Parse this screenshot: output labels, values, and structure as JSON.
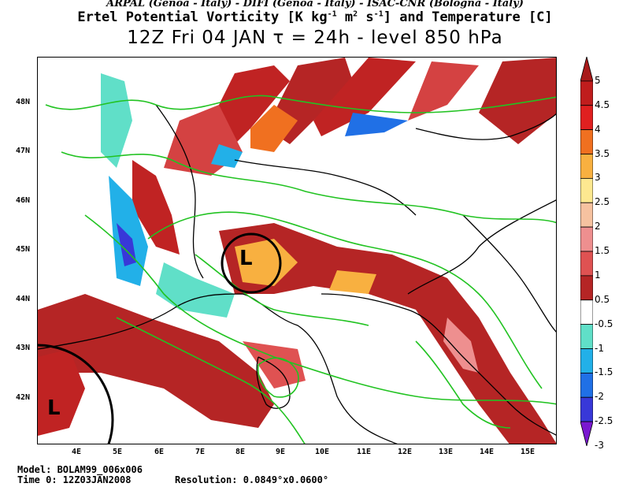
{
  "header": {
    "sources": "ARPAL (Genoa - Italy)  -  DIFI (Genoa - Italy)  -  ISAC-CNR (Bologna - Italy)",
    "title": "Ertel Potential Vorticity [K kg-1 m2 s-1] and Temperature [C]",
    "subtitle": "12Z Fri 04 JAN  τ = 24h  -  level 850 hPa"
  },
  "axes": {
    "lat_labels": [
      "48N",
      "47N",
      "46N",
      "45N",
      "44N",
      "43N",
      "42N"
    ],
    "lon_labels": [
      "4E",
      "5E",
      "6E",
      "7E",
      "8E",
      "9E",
      "10E",
      "11E",
      "12E",
      "13E",
      "14E",
      "15E"
    ]
  },
  "colorbar": {
    "labels": [
      "5",
      "4.5",
      "4",
      "3.5",
      "3",
      "2.5",
      "2",
      "1.5",
      "1",
      "0.5",
      "-0.5",
      "-1",
      "-1.5",
      "-2",
      "-2.5",
      "-3"
    ],
    "colors": [
      "#a81a1a",
      "#c01d1d",
      "#e02020",
      "#f07020",
      "#f8b040",
      "#fde890",
      "#f6c2a0",
      "#ee8f8f",
      "#df5252",
      "#b52525",
      "#ffffff",
      "#60dfc8",
      "#22b0e8",
      "#2070e6",
      "#3838d8",
      "#7a18d0"
    ]
  },
  "markers": {
    "low1": "L",
    "low2": "L"
  },
  "footer": {
    "model": "Model: BOLAM99_006x006",
    "time": "Time 0: 12Z03JAN2008",
    "resolution": "Resolution: 0.0849°x0.0600°"
  }
}
